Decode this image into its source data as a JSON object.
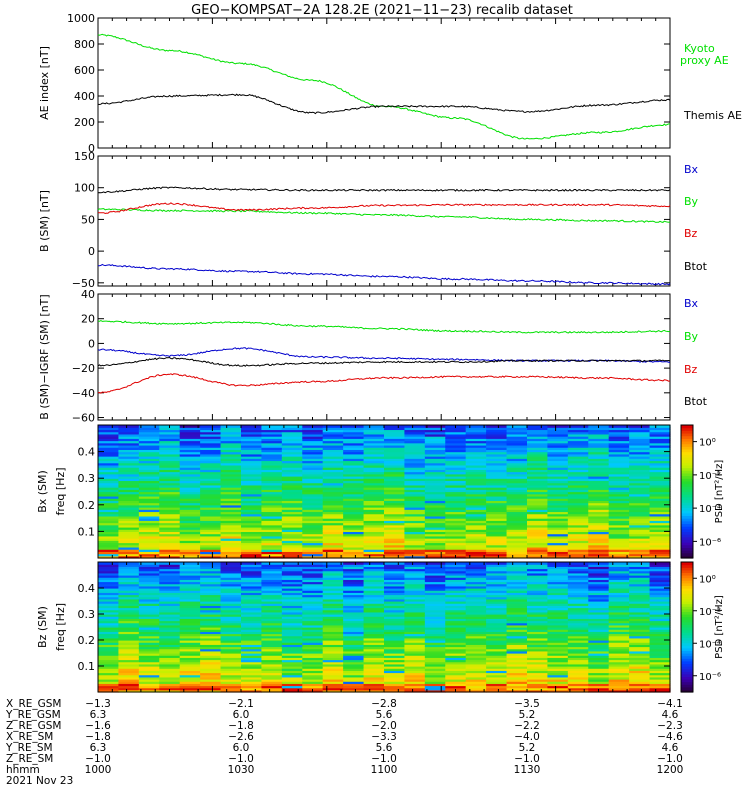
{
  "title": "GEO−KOMPSAT−2A 128.2E (2021−11−23) recalib dataset",
  "colors": {
    "black": "#000000",
    "green": "#00e000",
    "red": "#e00000",
    "blue": "#0000cc"
  },
  "chart_data": [
    {
      "type": "line",
      "ylabel": "AE index [nT]",
      "ylim": [
        0,
        1000
      ],
      "yticks": [
        "0",
        "200",
        "400",
        "600",
        "800",
        "1000"
      ],
      "x": [
        1000,
        1015,
        1030,
        1045,
        1100,
        1115,
        1130,
        1145,
        1200
      ],
      "xlim": [
        1000,
        1200
      ],
      "series": [
        {
          "name": "Kyoto proxy AE",
          "color": "#00e000",
          "values": [
            870,
            750,
            650,
            520,
            320,
            230,
            70,
            120,
            180
          ]
        },
        {
          "name": "Themis AE",
          "color": "#000000",
          "values": [
            340,
            400,
            410,
            270,
            320,
            320,
            280,
            330,
            370
          ]
        }
      ]
    },
    {
      "type": "line",
      "ylabel": "B (SM) [nT]",
      "ylim": [
        -55,
        150
      ],
      "yticks": [
        "−50",
        "0",
        "50",
        "100",
        "150"
      ],
      "x": [
        1000,
        1015,
        1030,
        1045,
        1100,
        1115,
        1130,
        1145,
        1200
      ],
      "xlim": [
        1000,
        1200
      ],
      "series": [
        {
          "name": "Bx",
          "color": "#0000cc",
          "values": [
            -22,
            -28,
            -32,
            -36,
            -40,
            -44,
            -47,
            -50,
            -52
          ]
        },
        {
          "name": "By",
          "color": "#00e000",
          "values": [
            66,
            64,
            63,
            60,
            57,
            54,
            50,
            48,
            46
          ]
        },
        {
          "name": "Bz",
          "color": "#e00000",
          "values": [
            60,
            75,
            65,
            68,
            72,
            73,
            73,
            73,
            71
          ]
        },
        {
          "name": "Btot",
          "color": "#000000",
          "values": [
            93,
            100,
            97,
            96,
            96,
            96,
            96,
            96,
            96
          ]
        }
      ]
    },
    {
      "type": "line",
      "ylabel": "B (SM)−IGRF (SM) [nT]",
      "ylim": [
        -62,
        40
      ],
      "yticks": [
        "−60",
        "−40",
        "−20",
        "0",
        "20",
        "40"
      ],
      "x": [
        1000,
        1015,
        1030,
        1045,
        1100,
        1115,
        1130,
        1145,
        1200
      ],
      "xlim": [
        1000,
        1200
      ],
      "series": [
        {
          "name": "Bx",
          "color": "#0000cc",
          "values": [
            -5,
            -10,
            -4,
            -11,
            -12,
            -13,
            -14,
            -14,
            -15
          ]
        },
        {
          "name": "By",
          "color": "#00e000",
          "values": [
            18,
            16,
            17,
            14,
            12,
            10,
            9,
            9,
            10
          ]
        },
        {
          "name": "Bz",
          "color": "#e00000",
          "values": [
            -40,
            -25,
            -34,
            -31,
            -28,
            -27,
            -27,
            -28,
            -30
          ]
        },
        {
          "name": "Btot",
          "color": "#000000",
          "values": [
            -18,
            -12,
            -18,
            -16,
            -15,
            -15,
            -14,
            -14,
            -14
          ]
        }
      ]
    },
    {
      "type": "heatmap",
      "component": "Bx",
      "ylabel": "Bx (SM) freq [Hz]",
      "ylim": [
        0,
        0.5
      ],
      "yticks": [
        "0.1",
        "0.2",
        "0.3",
        "0.4"
      ],
      "colorbar_label": "PSD [nT²/Hz]",
      "colorbar_ticks": [
        "10⁰",
        "10⁻²",
        "10⁻⁴",
        "10⁻⁶"
      ],
      "colorbar_range_exp": [
        -7,
        1
      ]
    },
    {
      "type": "heatmap",
      "component": "Bz",
      "ylabel": "Bz (SM) freq [Hz]",
      "ylim": [
        0,
        0.5
      ],
      "yticks": [
        "0.1",
        "0.2",
        "0.3",
        "0.4"
      ],
      "colorbar_label": "PSD [nT²/Hz]",
      "colorbar_ticks": [
        "10⁰",
        "10⁻²",
        "10⁻⁴",
        "10⁻⁶"
      ],
      "colorbar_range_exp": [
        -7,
        1
      ]
    }
  ],
  "coordinates": {
    "rows": [
      {
        "label": "X_RE_GSM",
        "values": [
          "−1.3",
          "−2.1",
          "−2.8",
          "−3.5",
          "−4.1"
        ]
      },
      {
        "label": "Y_RE_GSM",
        "values": [
          "6.3",
          "6.0",
          "5.6",
          "5.2",
          "4.6"
        ]
      },
      {
        "label": "Z_RE_GSM",
        "values": [
          "−1.6",
          "−1.8",
          "−2.0",
          "−2.2",
          "−2.3"
        ]
      },
      {
        "label": "X_RE_SM",
        "values": [
          "−1.8",
          "−2.6",
          "−3.3",
          "−4.0",
          "−4.6"
        ]
      },
      {
        "label": "Y_RE_SM",
        "values": [
          "6.3",
          "6.0",
          "5.6",
          "5.2",
          "4.6"
        ]
      },
      {
        "label": "Z_RE_SM",
        "values": [
          "−1.0",
          "−1.0",
          "−1.0",
          "−1.0",
          "−1.0"
        ]
      },
      {
        "label": "hhmm",
        "values": [
          "1000",
          "1030",
          "1100",
          "1130",
          "1200"
        ]
      }
    ],
    "date": "2021 Nov 23"
  }
}
